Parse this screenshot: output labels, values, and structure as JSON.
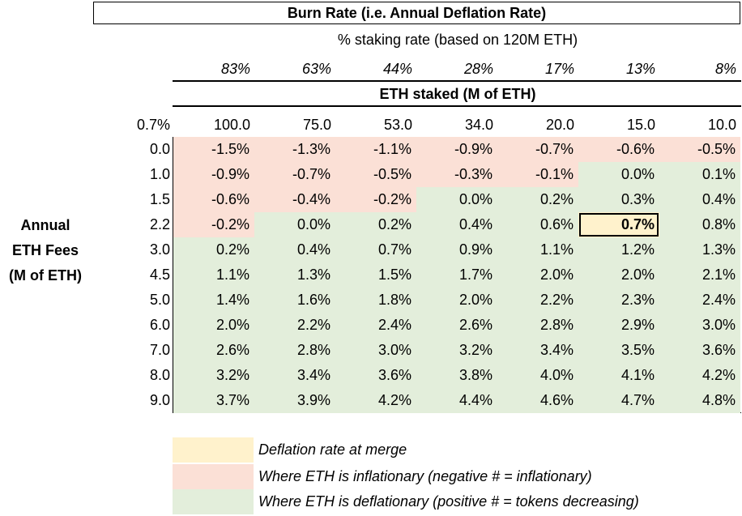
{
  "title": "Burn Rate (i.e. Annual Deflation Rate)",
  "subtitle": "% staking rate (based on 120M ETH)",
  "staked_label": "ETH staked (M of ETH)",
  "corner_label": "0.7%",
  "side_label": [
    "Annual",
    "ETH Fees",
    "(M of ETH)"
  ],
  "colors": {
    "inflationary": "#fbe0d6",
    "deflationary": "#e3eedb",
    "merge": "#fff2cc"
  },
  "chart_data": {
    "type": "table",
    "title": "Burn Rate (i.e. Annual Deflation Rate)",
    "staking_rates": [
      "83%",
      "63%",
      "44%",
      "28%",
      "17%",
      "13%",
      "8%"
    ],
    "columns": [
      "100.0",
      "75.0",
      "53.0",
      "34.0",
      "20.0",
      "15.0",
      "10.0"
    ],
    "rows": [
      "0.0",
      "1.0",
      "1.5",
      "2.2",
      "3.0",
      "4.5",
      "5.0",
      "6.0",
      "7.0",
      "8.0",
      "9.0"
    ],
    "values": [
      [
        "-1.5%",
        "-1.3%",
        "-1.1%",
        "-0.9%",
        "-0.7%",
        "-0.6%",
        "-0.5%"
      ],
      [
        "-0.9%",
        "-0.7%",
        "-0.5%",
        "-0.3%",
        "-0.1%",
        "0.0%",
        "0.1%"
      ],
      [
        "-0.6%",
        "-0.4%",
        "-0.2%",
        "0.0%",
        "0.2%",
        "0.3%",
        "0.4%"
      ],
      [
        "-0.2%",
        "0.0%",
        "0.2%",
        "0.4%",
        "0.6%",
        "0.7%",
        "0.8%"
      ],
      [
        "0.2%",
        "0.4%",
        "0.7%",
        "0.9%",
        "1.1%",
        "1.2%",
        "1.3%"
      ],
      [
        "1.1%",
        "1.3%",
        "1.5%",
        "1.7%",
        "2.0%",
        "2.0%",
        "2.1%"
      ],
      [
        "1.4%",
        "1.6%",
        "1.8%",
        "2.0%",
        "2.2%",
        "2.3%",
        "2.4%"
      ],
      [
        "2.0%",
        "2.2%",
        "2.4%",
        "2.6%",
        "2.8%",
        "2.9%",
        "3.0%"
      ],
      [
        "2.6%",
        "2.8%",
        "3.0%",
        "3.2%",
        "3.4%",
        "3.5%",
        "3.6%"
      ],
      [
        "3.2%",
        "3.4%",
        "3.6%",
        "3.8%",
        "4.0%",
        "4.1%",
        "4.2%"
      ],
      [
        "3.7%",
        "3.9%",
        "4.2%",
        "4.4%",
        "4.6%",
        "4.7%",
        "4.8%"
      ]
    ],
    "cell_class": [
      [
        "neg",
        "neg",
        "neg",
        "neg",
        "neg",
        "neg",
        "neg"
      ],
      [
        "neg",
        "neg",
        "neg",
        "neg",
        "neg",
        "pos",
        "pos"
      ],
      [
        "neg",
        "neg",
        "neg",
        "pos",
        "pos",
        "pos",
        "pos"
      ],
      [
        "neg",
        "pos",
        "pos",
        "pos",
        "pos",
        "merge",
        "pos"
      ],
      [
        "pos",
        "pos",
        "pos",
        "pos",
        "pos",
        "pos",
        "pos"
      ],
      [
        "pos",
        "pos",
        "pos",
        "pos",
        "pos",
        "pos",
        "pos"
      ],
      [
        "pos",
        "pos",
        "pos",
        "pos",
        "pos",
        "pos",
        "pos"
      ],
      [
        "pos",
        "pos",
        "pos",
        "pos",
        "pos",
        "pos",
        "pos"
      ],
      [
        "pos",
        "pos",
        "pos",
        "pos",
        "pos",
        "pos",
        "pos"
      ],
      [
        "pos",
        "pos",
        "pos",
        "pos",
        "pos",
        "pos",
        "pos"
      ],
      [
        "pos",
        "pos",
        "pos",
        "pos",
        "pos",
        "pos",
        "pos"
      ]
    ]
  },
  "legend": [
    {
      "kind": "merge",
      "label": "Deflation rate at merge"
    },
    {
      "kind": "inflationary",
      "label": "Where ETH is inflationary (negative # = inflationary)"
    },
    {
      "kind": "deflationary",
      "label": "Where ETH is deflationary (positive # = tokens decreasing)"
    }
  ]
}
